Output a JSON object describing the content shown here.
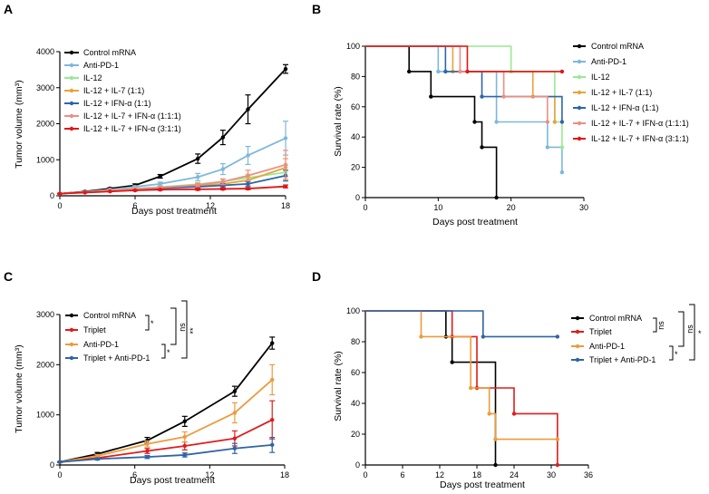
{
  "colors": {
    "black": "#000000",
    "light_blue": "#7db8dc",
    "light_green": "#99ea91",
    "orange": "#e8a33d",
    "dark_blue": "#2e66a8",
    "salmon": "#ef8d82",
    "red": "#e01616",
    "triplet_red": "#e01b1b",
    "anti_pd1_orange": "#ec9b3e",
    "combo_blue": "#2f64a4"
  },
  "chart_data": [
    {
      "panel": "A",
      "type": "line",
      "xlabel": "Days post treatment",
      "ylabel": "Tumor volume (mm³)",
      "xlim": [
        0,
        18
      ],
      "ylim": [
        0,
        4000
      ],
      "xticks": [
        0,
        6,
        12,
        18
      ],
      "yticks": [
        0,
        1000,
        2000,
        3000,
        4000
      ],
      "legend_position": "top-left",
      "series": [
        {
          "name": "Control mRNA",
          "color": "#000000",
          "x": [
            0,
            2,
            4,
            6,
            8,
            11,
            13,
            15,
            18
          ],
          "y": [
            60,
            120,
            200,
            290,
            540,
            1030,
            1620,
            2400,
            3520
          ],
          "err": [
            10,
            15,
            25,
            40,
            50,
            130,
            200,
            400,
            120
          ]
        },
        {
          "name": "Anti-PD-1",
          "color": "#7db8dc",
          "x": [
            0,
            2,
            4,
            6,
            8,
            11,
            13,
            15,
            18
          ],
          "y": [
            60,
            110,
            170,
            250,
            330,
            520,
            740,
            1120,
            1600
          ],
          "err": [
            10,
            15,
            20,
            30,
            50,
            100,
            150,
            250,
            470
          ]
        },
        {
          "name": "IL-12",
          "color": "#99ea91",
          "x": [
            0,
            2,
            4,
            6,
            8,
            11,
            13,
            15,
            18
          ],
          "y": [
            60,
            100,
            150,
            200,
            240,
            320,
            400,
            500,
            650
          ],
          "err": [
            10,
            10,
            15,
            20,
            30,
            50,
            60,
            100,
            200
          ]
        },
        {
          "name": "IL-12 + IL-7 (1:1)",
          "color": "#e8a33d",
          "x": [
            0,
            2,
            4,
            6,
            8,
            11,
            13,
            15,
            18
          ],
          "y": [
            60,
            100,
            140,
            180,
            220,
            280,
            330,
            430,
            780
          ],
          "err": [
            10,
            10,
            15,
            20,
            30,
            40,
            60,
            90,
            250
          ]
        },
        {
          "name": "IL-12 + IFN-α (1:1)",
          "color": "#2e66a8",
          "x": [
            0,
            2,
            4,
            6,
            8,
            11,
            13,
            15,
            18
          ],
          "y": [
            60,
            100,
            140,
            170,
            210,
            250,
            290,
            330,
            560
          ],
          "err": [
            10,
            10,
            15,
            20,
            25,
            30,
            40,
            60,
            150
          ]
        },
        {
          "name": "IL-12 + IL-7 + IFN-α (1:1:1)",
          "color": "#ef8d82",
          "x": [
            0,
            2,
            4,
            6,
            8,
            11,
            13,
            15,
            18
          ],
          "y": [
            60,
            100,
            150,
            190,
            230,
            300,
            390,
            560,
            860
          ],
          "err": [
            10,
            10,
            15,
            20,
            30,
            50,
            80,
            150,
            400
          ]
        },
        {
          "name": "IL-12 + IL-7 + IFN-α (3:1:1)",
          "color": "#e01616",
          "x": [
            0,
            2,
            4,
            6,
            8,
            11,
            13,
            15,
            18
          ],
          "y": [
            60,
            90,
            120,
            150,
            170,
            180,
            190,
            200,
            260
          ],
          "err": [
            10,
            10,
            10,
            15,
            20,
            25,
            25,
            30,
            40
          ]
        }
      ]
    },
    {
      "panel": "B",
      "type": "line",
      "subtype": "survival",
      "xlabel": "Days post treatment",
      "ylabel": "Survival rate (%)",
      "xlim": [
        0,
        30
      ],
      "ylim": [
        0,
        100
      ],
      "xticks": [
        0,
        10,
        20,
        30
      ],
      "yticks": [
        0,
        20,
        40,
        60,
        80,
        100
      ],
      "legend_position": "right",
      "series": [
        {
          "name": "Control mRNA",
          "color": "#000000",
          "steps": [
            [
              0,
              100
            ],
            [
              6,
              83.3
            ],
            [
              9,
              66.7
            ],
            [
              15,
              50
            ],
            [
              16,
              33.3
            ],
            [
              18,
              0
            ]
          ]
        },
        {
          "name": "Anti-PD-1",
          "color": "#7db8dc",
          "steps": [
            [
              0,
              100
            ],
            [
              10,
              83.3
            ],
            [
              18,
              50
            ],
            [
              25,
              33.3
            ],
            [
              27,
              16.7
            ]
          ]
        },
        {
          "name": "IL-12",
          "color": "#99ea91",
          "steps": [
            [
              0,
              100
            ],
            [
              20,
              83.3
            ],
            [
              26,
              50
            ],
            [
              27,
              33.3
            ]
          ]
        },
        {
          "name": "IL-12 + IL-7 (1:1)",
          "color": "#e8a33d",
          "steps": [
            [
              0,
              100
            ],
            [
              12,
              83.3
            ],
            [
              23,
              66.7
            ],
            [
              26,
              50
            ]
          ]
        },
        {
          "name": "IL-12 + IFN-α (1:1)",
          "color": "#2e66a8",
          "steps": [
            [
              0,
              100
            ],
            [
              11,
              83.3
            ],
            [
              16,
              66.7
            ],
            [
              27,
              50
            ]
          ]
        },
        {
          "name": "IL-12 + IL-7 + IFN-α (1:1:1)",
          "color": "#ef8d82",
          "steps": [
            [
              0,
              100
            ],
            [
              13,
              83.3
            ],
            [
              19,
              66.7
            ],
            [
              25,
              50
            ]
          ]
        },
        {
          "name": "IL-12 + IL-7 + IFN-α (3:1:1)",
          "color": "#e01616",
          "steps": [
            [
              0,
              100
            ],
            [
              14,
              83.3
            ],
            [
              27,
              83.3
            ]
          ]
        }
      ]
    },
    {
      "panel": "C",
      "type": "line",
      "xlabel": "Days post treatment",
      "ylabel": "Tumor volume (mm³)",
      "xlim": [
        0,
        18
      ],
      "ylim": [
        0,
        3000
      ],
      "xticks": [
        0,
        6,
        12,
        18
      ],
      "yticks": [
        0,
        1000,
        2000,
        3000
      ],
      "legend_position": "top-left",
      "series": [
        {
          "name": "Control mRNA",
          "color": "#000000",
          "x": [
            0,
            3,
            7,
            10,
            14,
            17
          ],
          "y": [
            60,
            220,
            490,
            870,
            1470,
            2430
          ],
          "err": [
            10,
            30,
            60,
            100,
            100,
            120
          ]
        },
        {
          "name": "Triplet",
          "color": "#e01b1b",
          "x": [
            0,
            3,
            7,
            10,
            14,
            17
          ],
          "y": [
            60,
            140,
            280,
            380,
            530,
            900
          ],
          "err": [
            10,
            20,
            50,
            80,
            150,
            380
          ]
        },
        {
          "name": "Anti-PD-1",
          "color": "#ec9b3e",
          "x": [
            0,
            3,
            7,
            10,
            14,
            17
          ],
          "y": [
            60,
            180,
            420,
            560,
            1040,
            1700
          ],
          "err": [
            10,
            30,
            60,
            100,
            200,
            300
          ]
        },
        {
          "name": "Triplet + Anti-PD-1",
          "color": "#2f64a4",
          "x": [
            0,
            3,
            7,
            10,
            14,
            17
          ],
          "y": [
            60,
            120,
            160,
            200,
            330,
            400
          ],
          "err": [
            10,
            20,
            30,
            40,
            100,
            150
          ]
        }
      ],
      "significance": [
        {
          "label": "*",
          "between": [
            "Control mRNA",
            "Triplet"
          ]
        },
        {
          "label": "ns",
          "between": [
            "Control mRNA",
            "Anti-PD-1"
          ]
        },
        {
          "label": "**",
          "between": [
            "Control mRNA",
            "Triplet + Anti-PD-1"
          ]
        },
        {
          "label": "*",
          "between": [
            "Anti-PD-1",
            "Triplet + Anti-PD-1"
          ]
        }
      ]
    },
    {
      "panel": "D",
      "type": "line",
      "subtype": "survival",
      "xlabel": "Days post treatment",
      "ylabel": "Survival rate (%)",
      "xlim": [
        0,
        36
      ],
      "ylim": [
        0,
        100
      ],
      "xticks": [
        0,
        6,
        12,
        18,
        24,
        30,
        36
      ],
      "yticks": [
        0,
        20,
        40,
        60,
        80,
        100
      ],
      "legend_position": "top-right",
      "series": [
        {
          "name": "Control mRNA",
          "color": "#000000",
          "steps": [
            [
              0,
              100
            ],
            [
              13,
              83.3
            ],
            [
              14,
              66.7
            ],
            [
              21,
              0
            ]
          ]
        },
        {
          "name": "Triplet",
          "color": "#e01b1b",
          "steps": [
            [
              0,
              100
            ],
            [
              14,
              83.3
            ],
            [
              18,
              50
            ],
            [
              24,
              33.3
            ],
            [
              31,
              0
            ]
          ]
        },
        {
          "name": "Anti-PD-1",
          "color": "#ec9b3e",
          "steps": [
            [
              0,
              100
            ],
            [
              9,
              83.3
            ],
            [
              17,
              50
            ],
            [
              20,
              33.3
            ],
            [
              21,
              16.7
            ],
            [
              31,
              16.7
            ]
          ]
        },
        {
          "name": "Triplet + Anti-PD-1",
          "color": "#2f64a4",
          "steps": [
            [
              0,
              100
            ],
            [
              19,
              83.3
            ],
            [
              31,
              83.3
            ]
          ]
        }
      ],
      "significance": [
        {
          "label": "ns",
          "between": [
            "Control mRNA",
            "Triplet"
          ]
        },
        {
          "label": "ns",
          "between": [
            "Control mRNA",
            "Anti-PD-1"
          ]
        },
        {
          "label": "*",
          "between": [
            "Control mRNA",
            "Triplet + Anti-PD-1"
          ]
        },
        {
          "label": "*",
          "between": [
            "Anti-PD-1",
            "Triplet + Anti-PD-1"
          ]
        }
      ]
    }
  ]
}
